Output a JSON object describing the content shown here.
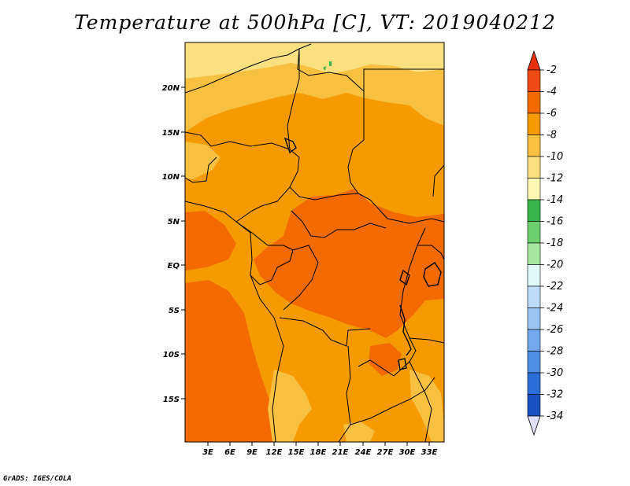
{
  "title": "Temperature at 500hPa [C], VT: 2019040212",
  "credit": "GrADS: IGES/COLA",
  "map": {
    "projection": "latlon",
    "lon_range": [
      0,
      35
    ],
    "lat_range": [
      -20,
      25
    ],
    "lon_ticks": [
      "3E",
      "6E",
      "9E",
      "12E",
      "15E",
      "18E",
      "21E",
      "24E",
      "27E",
      "30E",
      "33E"
    ],
    "lat_ticks": [
      "20N",
      "15N",
      "10N",
      "5N",
      "EQ",
      "5S",
      "10S",
      "15S"
    ]
  },
  "colorbar": {
    "labels": [
      "-2",
      "-4",
      "-6",
      "-8",
      "-10",
      "-12",
      "-14",
      "-16",
      "-18",
      "-20",
      "-22",
      "-24",
      "-26",
      "-28",
      "-30",
      "-32",
      "-34"
    ],
    "colors": [
      "#f04a14",
      "#f26a00",
      "#f59a00",
      "#f8c040",
      "#fbe080",
      "#fdf7b4",
      "#37b44a",
      "#6cd06e",
      "#a6e6a0",
      "#e0f8f8",
      "#bcdcf8",
      "#9ac4f2",
      "#74a8ec",
      "#4d8ee6",
      "#2c6ed8",
      "#1a50c0",
      "#08127a"
    ],
    "top_arrow_color": "#e83010",
    "bottom_arrow_color": "#e0e0f8"
  },
  "chart_data": {
    "type": "heatmap",
    "title": "Temperature at 500hPa [C], VT: 2019040212",
    "xlabel": "",
    "ylabel": "",
    "x_ticks": [
      "3E",
      "6E",
      "9E",
      "12E",
      "15E",
      "18E",
      "21E",
      "24E",
      "27E",
      "30E",
      "33E"
    ],
    "y_ticks": [
      "20N",
      "15N",
      "10N",
      "5N",
      "EQ",
      "5S",
      "10S",
      "15S"
    ],
    "colorbar_levels": [
      -2,
      -4,
      -6,
      -8,
      -10,
      -12,
      -14,
      -16,
      -18,
      -20,
      -22,
      -24,
      -26,
      -28,
      -30,
      -32,
      -34
    ],
    "dominant_range_C": [
      -10,
      -2
    ],
    "legend_placement": "right"
  }
}
